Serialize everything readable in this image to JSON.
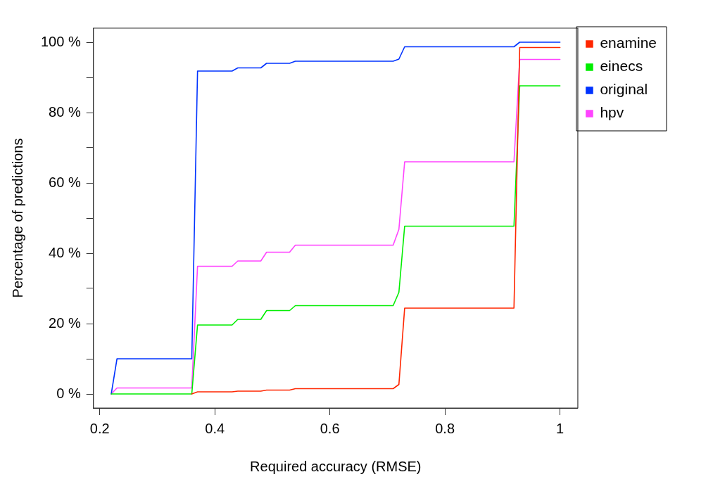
{
  "chart_data": {
    "type": "line",
    "xlabel": "Required accuracy (RMSE)",
    "ylabel": "Percentage of predictions",
    "x": [
      0.22,
      0.23,
      0.36,
      0.37,
      0.43,
      0.44,
      0.48,
      0.49,
      0.53,
      0.54,
      0.71,
      0.72,
      0.73,
      0.92,
      0.93,
      1.0
    ],
    "series": [
      {
        "name": "enamine",
        "color": "#ff2600",
        "values": [
          null,
          null,
          0,
          0.6,
          0.6,
          0.8,
          0.8,
          1.1,
          1.1,
          1.5,
          1.5,
          2.7,
          24.4,
          24.4,
          98.5,
          98.5
        ]
      },
      {
        "name": "einecs",
        "color": "#00ee00",
        "values": [
          0,
          0,
          0,
          19.6,
          19.6,
          21.2,
          21.2,
          23.7,
          23.7,
          25.1,
          25.1,
          28.9,
          47.7,
          47.7,
          87.6,
          87.6
        ]
      },
      {
        "name": "original",
        "color": "#0033ff",
        "values": [
          0,
          10,
          10,
          91.8,
          91.8,
          92.7,
          92.7,
          94,
          94,
          94.6,
          94.6,
          95.2,
          98.7,
          98.7,
          100,
          100
        ]
      },
      {
        "name": "hpv",
        "color": "#ff44ff",
        "values": [
          0,
          1.7,
          1.7,
          36.3,
          36.3,
          37.8,
          37.8,
          40.3,
          40.3,
          42.3,
          42.3,
          46.8,
          66,
          66,
          95.1,
          95.1
        ]
      }
    ],
    "xlim": [
      0.189,
      1.031
    ],
    "xticks": [
      0.2,
      0.4,
      0.6,
      0.8,
      1.0
    ],
    "ylim": [
      -4,
      104
    ],
    "yticks": [
      {
        "value": 0,
        "label": "0 %"
      },
      {
        "value": 10,
        "label": null
      },
      {
        "value": 20,
        "label": "20 %"
      },
      {
        "value": 30,
        "label": null
      },
      {
        "value": 40,
        "label": "40 %"
      },
      {
        "value": 50,
        "label": null
      },
      {
        "value": 60,
        "label": "60 %"
      },
      {
        "value": 70,
        "label": null
      },
      {
        "value": 80,
        "label": "80 %"
      },
      {
        "value": 90,
        "label": null
      },
      {
        "value": 100,
        "label": "100 %"
      }
    ],
    "grid": false,
    "legend": "top right",
    "marker": "none",
    "line_style": "solid"
  }
}
